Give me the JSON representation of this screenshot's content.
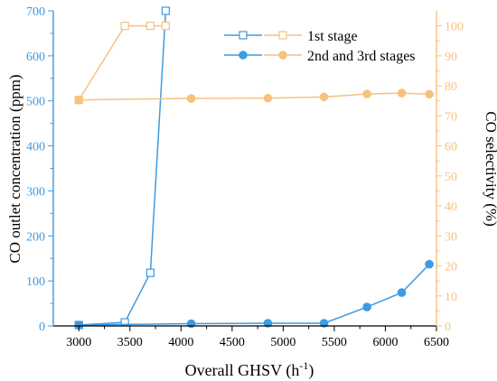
{
  "chart_data": {
    "type": "line",
    "title": "",
    "xlabel": "Overall GHSV (h",
    "xlabel_sup": "-1",
    "xlabel_suffix": ")",
    "ylabel": "CO outlet concentration (ppm)",
    "y2label": "CO selectivity (%)",
    "xlim": [
      2750,
      6500
    ],
    "xticks": [
      3000,
      3500,
      4000,
      4500,
      5000,
      5500,
      6000,
      6500
    ],
    "ylim": [
      0,
      700
    ],
    "yticks": [
      0,
      100,
      200,
      300,
      400,
      500,
      600,
      700
    ],
    "y2lim": [
      0,
      105
    ],
    "y2ticks": [
      0,
      10,
      20,
      30,
      40,
      50,
      60,
      70,
      80,
      90,
      100
    ],
    "legend_position": "top-right",
    "colors": {
      "blue": "#3d9be2",
      "orange": "#f6c27f",
      "axis_left": "#3d9be2",
      "axis_right": "#f6c27f"
    },
    "series": [
      {
        "name": "1st stage",
        "axis": "left",
        "color": "#3d9be2",
        "marker": "open-square",
        "clip_top": true,
        "x": [
          3000,
          3450,
          3700,
          3850
        ],
        "y": [
          2,
          8,
          118,
          700
        ]
      },
      {
        "name": "1st stage",
        "axis": "right",
        "color": "#f6c27f",
        "marker": "open-square",
        "x": [
          3000,
          3450,
          3700,
          3850
        ],
        "y": [
          75.3,
          100,
          100,
          100
        ]
      },
      {
        "name": "2nd and 3rd stages",
        "axis": "left",
        "color": "#3d9be2",
        "marker": "filled-circle",
        "x": [
          3000,
          4100,
          4850,
          5400,
          5820,
          6160,
          6430
        ],
        "y": [
          2,
          5,
          6,
          6,
          42,
          74,
          137
        ]
      },
      {
        "name": "2nd and 3rd stages",
        "axis": "right",
        "color": "#f6c27f",
        "marker": "filled-circle",
        "x": [
          3000,
          4100,
          4850,
          5400,
          5820,
          6160,
          6430
        ],
        "y": [
          75.3,
          75.8,
          75.9,
          76.3,
          77.3,
          77.6,
          77.2
        ]
      }
    ]
  }
}
